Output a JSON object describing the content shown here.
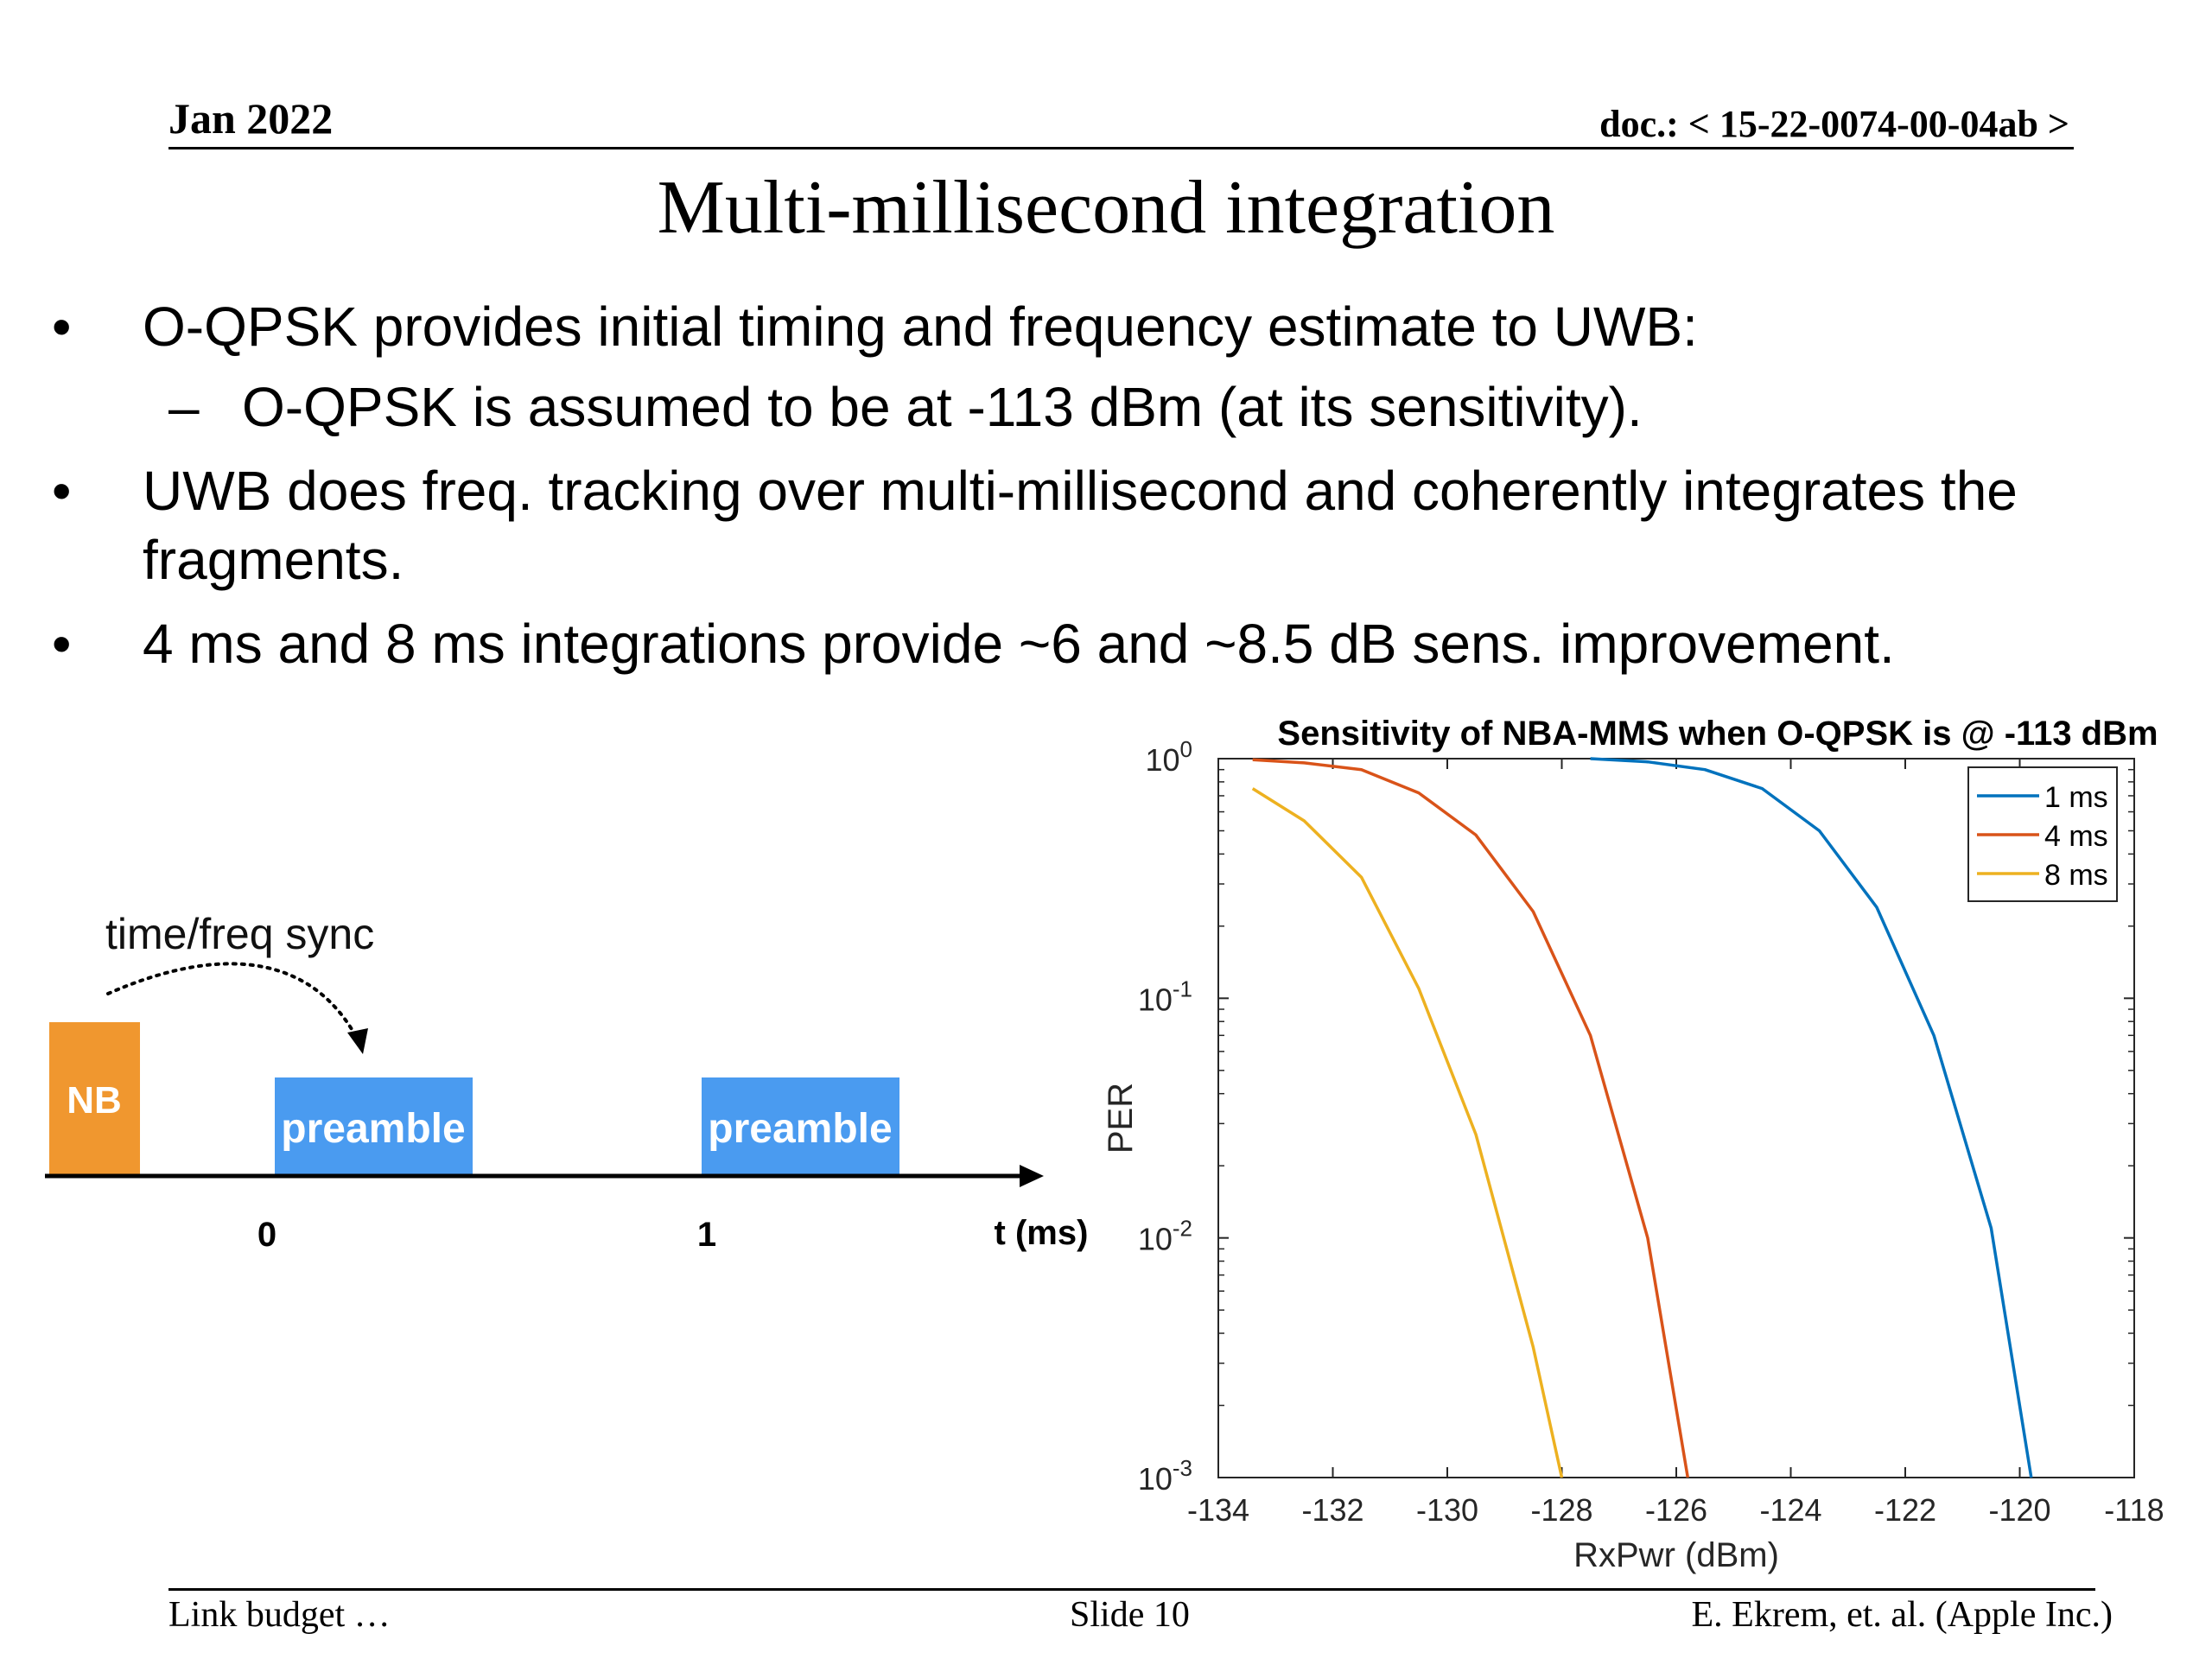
{
  "header": {
    "date": "Jan 2022",
    "doc": "doc.: < 15-22-0074-00-04ab >"
  },
  "title": "Multi-millisecond integration",
  "bullets": [
    {
      "marker": "•",
      "text": "O-QPSK provides initial timing and frequency estimate to UWB:"
    },
    {
      "marker": "–",
      "text": "O-QPSK is assumed to be at -113 dBm (at its sensitivity)."
    },
    {
      "marker": "•",
      "text": "UWB does freq. tracking over multi-millisecond and coherently integrates the fragments."
    },
    {
      "marker": "•",
      "text": "4 ms and 8 ms integrations provide ~6 and ~8.5 dB sens. improvement."
    }
  ],
  "diagram": {
    "sync_label": "time/freq sync",
    "nb_label": "NB",
    "preamble_1": "preamble",
    "preamble_2": "preamble",
    "tick_0": "0",
    "tick_1": "1",
    "axis_label": "t (ms)",
    "colors": {
      "nb": "#F0972F",
      "preamble": "#4A9BF0"
    }
  },
  "chart_data": {
    "type": "line",
    "title": "Sensitivity of NBA-MMS when O-QPSK is @ -113 dBm",
    "xlabel": "RxPwr (dBm)",
    "ylabel": "PER",
    "xlim": [
      -134,
      -118
    ],
    "ylim": [
      0.001,
      1
    ],
    "yscale": "log",
    "xticks": [
      "-134",
      "-132",
      "-130",
      "-128",
      "-126",
      "-124",
      "-122",
      "-120",
      "-118"
    ],
    "yticks": [
      {
        "base": "10",
        "exp": "0"
      },
      {
        "base": "10",
        "exp": "-1"
      },
      {
        "base": "10",
        "exp": "-2"
      },
      {
        "base": "10",
        "exp": "-3"
      }
    ],
    "legend_position": "top-right",
    "grid": false,
    "series": [
      {
        "name": "1 ms",
        "color": "#0072BD",
        "x": [
          -127.5,
          -126.5,
          -125.5,
          -124.5,
          -123.5,
          -122.5,
          -121.5,
          -120.5,
          -119.8
        ],
        "y": [
          1.0,
          0.97,
          0.9,
          0.75,
          0.5,
          0.24,
          0.07,
          0.011,
          0.001
        ]
      },
      {
        "name": "4 ms",
        "color": "#D95319",
        "x": [
          -133.4,
          -132.5,
          -131.5,
          -130.5,
          -129.5,
          -128.5,
          -127.5,
          -126.5,
          -125.8
        ],
        "y": [
          0.99,
          0.96,
          0.9,
          0.72,
          0.48,
          0.23,
          0.07,
          0.01,
          0.001
        ]
      },
      {
        "name": "8 ms",
        "color": "#EDB120",
        "x": [
          -133.4,
          -132.5,
          -131.5,
          -130.5,
          -129.5,
          -128.5,
          -128.0
        ],
        "y": [
          0.75,
          0.55,
          0.32,
          0.11,
          0.027,
          0.0035,
          0.001
        ]
      }
    ]
  },
  "footer": {
    "left": "Link budget …",
    "center": "Slide 10",
    "right": "E. Ekrem, et. al. (Apple Inc.)"
  }
}
